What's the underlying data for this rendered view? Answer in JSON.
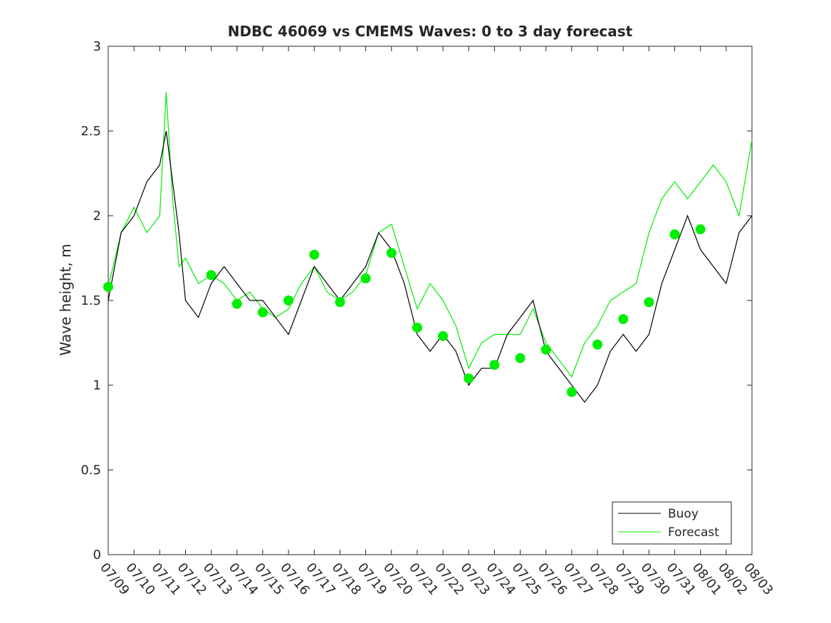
{
  "chart_data": {
    "type": "line",
    "title": "NDBC 46069 vs CMEMS Waves: 0 to 3 day forecast",
    "xlabel": "",
    "ylabel": "Wave height, m",
    "xlim": [
      "07/09",
      "08/03"
    ],
    "ylim": [
      0,
      3
    ],
    "yticks": [
      0,
      0.5,
      1,
      1.5,
      2,
      2.5,
      3
    ],
    "ytick_labels": [
      "0",
      "0.5",
      "1",
      "1.5",
      "2",
      "2.5",
      "3"
    ],
    "xtick_labels": [
      "07/09",
      "07/10",
      "07/11",
      "07/12",
      "07/13",
      "07/14",
      "07/15",
      "07/16",
      "07/17",
      "07/18",
      "07/19",
      "07/20",
      "07/21",
      "07/22",
      "07/23",
      "07/24",
      "07/25",
      "07/26",
      "07/27",
      "07/28",
      "07/29",
      "07/30",
      "07/31",
      "08/01",
      "08/02",
      "08/03"
    ],
    "grid": false,
    "legend_position": "bottom-right",
    "colors": {
      "buoy": "#000000",
      "forecast": "#00ee00"
    },
    "buoy": {
      "name": "Buoy",
      "x": [
        "07/09",
        "07/09 12:00",
        "07/10",
        "07/10 12:00",
        "07/11",
        "07/11 06:00",
        "07/11 12:00",
        "07/11 18:00",
        "07/12",
        "07/12 12:00",
        "07/13",
        "07/13 12:00",
        "07/14",
        "07/14 12:00",
        "07/15",
        "07/15 12:00",
        "07/16",
        "07/16 12:00",
        "07/17",
        "07/17 12:00",
        "07/18",
        "07/18 12:00",
        "07/19",
        "07/19 12:00",
        "07/20",
        "07/20 12:00",
        "07/21",
        "07/21 12:00",
        "07/22",
        "07/22 12:00",
        "07/23",
        "07/23 12:00",
        "07/24",
        "07/24 12:00",
        "07/25",
        "07/25 12:00",
        "07/26",
        "07/26 12:00",
        "07/27",
        "07/27 12:00",
        "07/28",
        "07/28 12:00",
        "07/29",
        "07/29 12:00",
        "07/30",
        "07/30 12:00",
        "07/31",
        "07/31 12:00",
        "08/01",
        "08/01 12:00",
        "08/02",
        "08/02 12:00",
        "08/03"
      ],
      "values": [
        1.5,
        1.9,
        2.0,
        2.2,
        2.3,
        2.5,
        2.2,
        1.9,
        1.5,
        1.4,
        1.6,
        1.7,
        1.6,
        1.5,
        1.5,
        1.4,
        1.3,
        1.5,
        1.7,
        1.6,
        1.5,
        1.6,
        1.7,
        1.9,
        1.8,
        1.6,
        1.3,
        1.2,
        1.3,
        1.2,
        1.0,
        1.1,
        1.1,
        1.3,
        1.4,
        1.5,
        1.2,
        1.1,
        1.0,
        0.9,
        1.0,
        1.2,
        1.3,
        1.2,
        1.3,
        1.6,
        1.8,
        2.0,
        1.8,
        1.7,
        1.6,
        1.9,
        2.0
      ]
    },
    "forecast": {
      "name": "Forecast",
      "x": [
        "07/09",
        "07/09 12:00",
        "07/10",
        "07/10 12:00",
        "07/11",
        "07/11 06:00",
        "07/11 12:00",
        "07/11 18:00",
        "07/12",
        "07/12 12:00",
        "07/13",
        "07/13 12:00",
        "07/14",
        "07/14 12:00",
        "07/15",
        "07/15 12:00",
        "07/16",
        "07/16 12:00",
        "07/17",
        "07/17 12:00",
        "07/18",
        "07/18 12:00",
        "07/19",
        "07/19 12:00",
        "07/20",
        "07/20 12:00",
        "07/21",
        "07/21 12:00",
        "07/22",
        "07/22 12:00",
        "07/23",
        "07/23 12:00",
        "07/24",
        "07/24 12:00",
        "07/25",
        "07/25 12:00",
        "07/26",
        "07/26 12:00",
        "07/27",
        "07/27 12:00",
        "07/28",
        "07/28 12:00",
        "07/29",
        "07/29 12:00",
        "07/30",
        "07/30 12:00",
        "07/31",
        "07/31 12:00",
        "08/01",
        "08/01 12:00",
        "08/02",
        "08/02 12:00",
        "08/03"
      ],
      "values": [
        1.58,
        1.9,
        2.05,
        1.9,
        2.0,
        2.73,
        2.1,
        1.7,
        1.75,
        1.6,
        1.65,
        1.6,
        1.5,
        1.55,
        1.45,
        1.4,
        1.45,
        1.6,
        1.7,
        1.55,
        1.5,
        1.55,
        1.65,
        1.9,
        1.95,
        1.7,
        1.45,
        1.6,
        1.5,
        1.35,
        1.1,
        1.25,
        1.3,
        1.3,
        1.3,
        1.45,
        1.25,
        1.15,
        1.05,
        1.25,
        1.35,
        1.5,
        1.55,
        1.6,
        1.9,
        2.1,
        2.2,
        2.1,
        2.2,
        2.3,
        2.2,
        2.0,
        2.45
      ]
    },
    "forecast_markers": {
      "x": [
        "07/09",
        "07/13",
        "07/14",
        "07/15",
        "07/16",
        "07/17",
        "07/18",
        "07/19",
        "07/20",
        "07/21",
        "07/22",
        "07/23",
        "07/24",
        "07/25",
        "07/26",
        "07/27",
        "07/28",
        "07/29",
        "07/30",
        "07/31",
        "08/01"
      ],
      "values": [
        1.58,
        1.65,
        1.48,
        1.43,
        1.5,
        1.77,
        1.49,
        1.63,
        1.78,
        1.34,
        1.29,
        1.04,
        1.12,
        1.16,
        1.21,
        0.96,
        1.24,
        1.39,
        1.49,
        1.89,
        1.92
      ]
    }
  }
}
